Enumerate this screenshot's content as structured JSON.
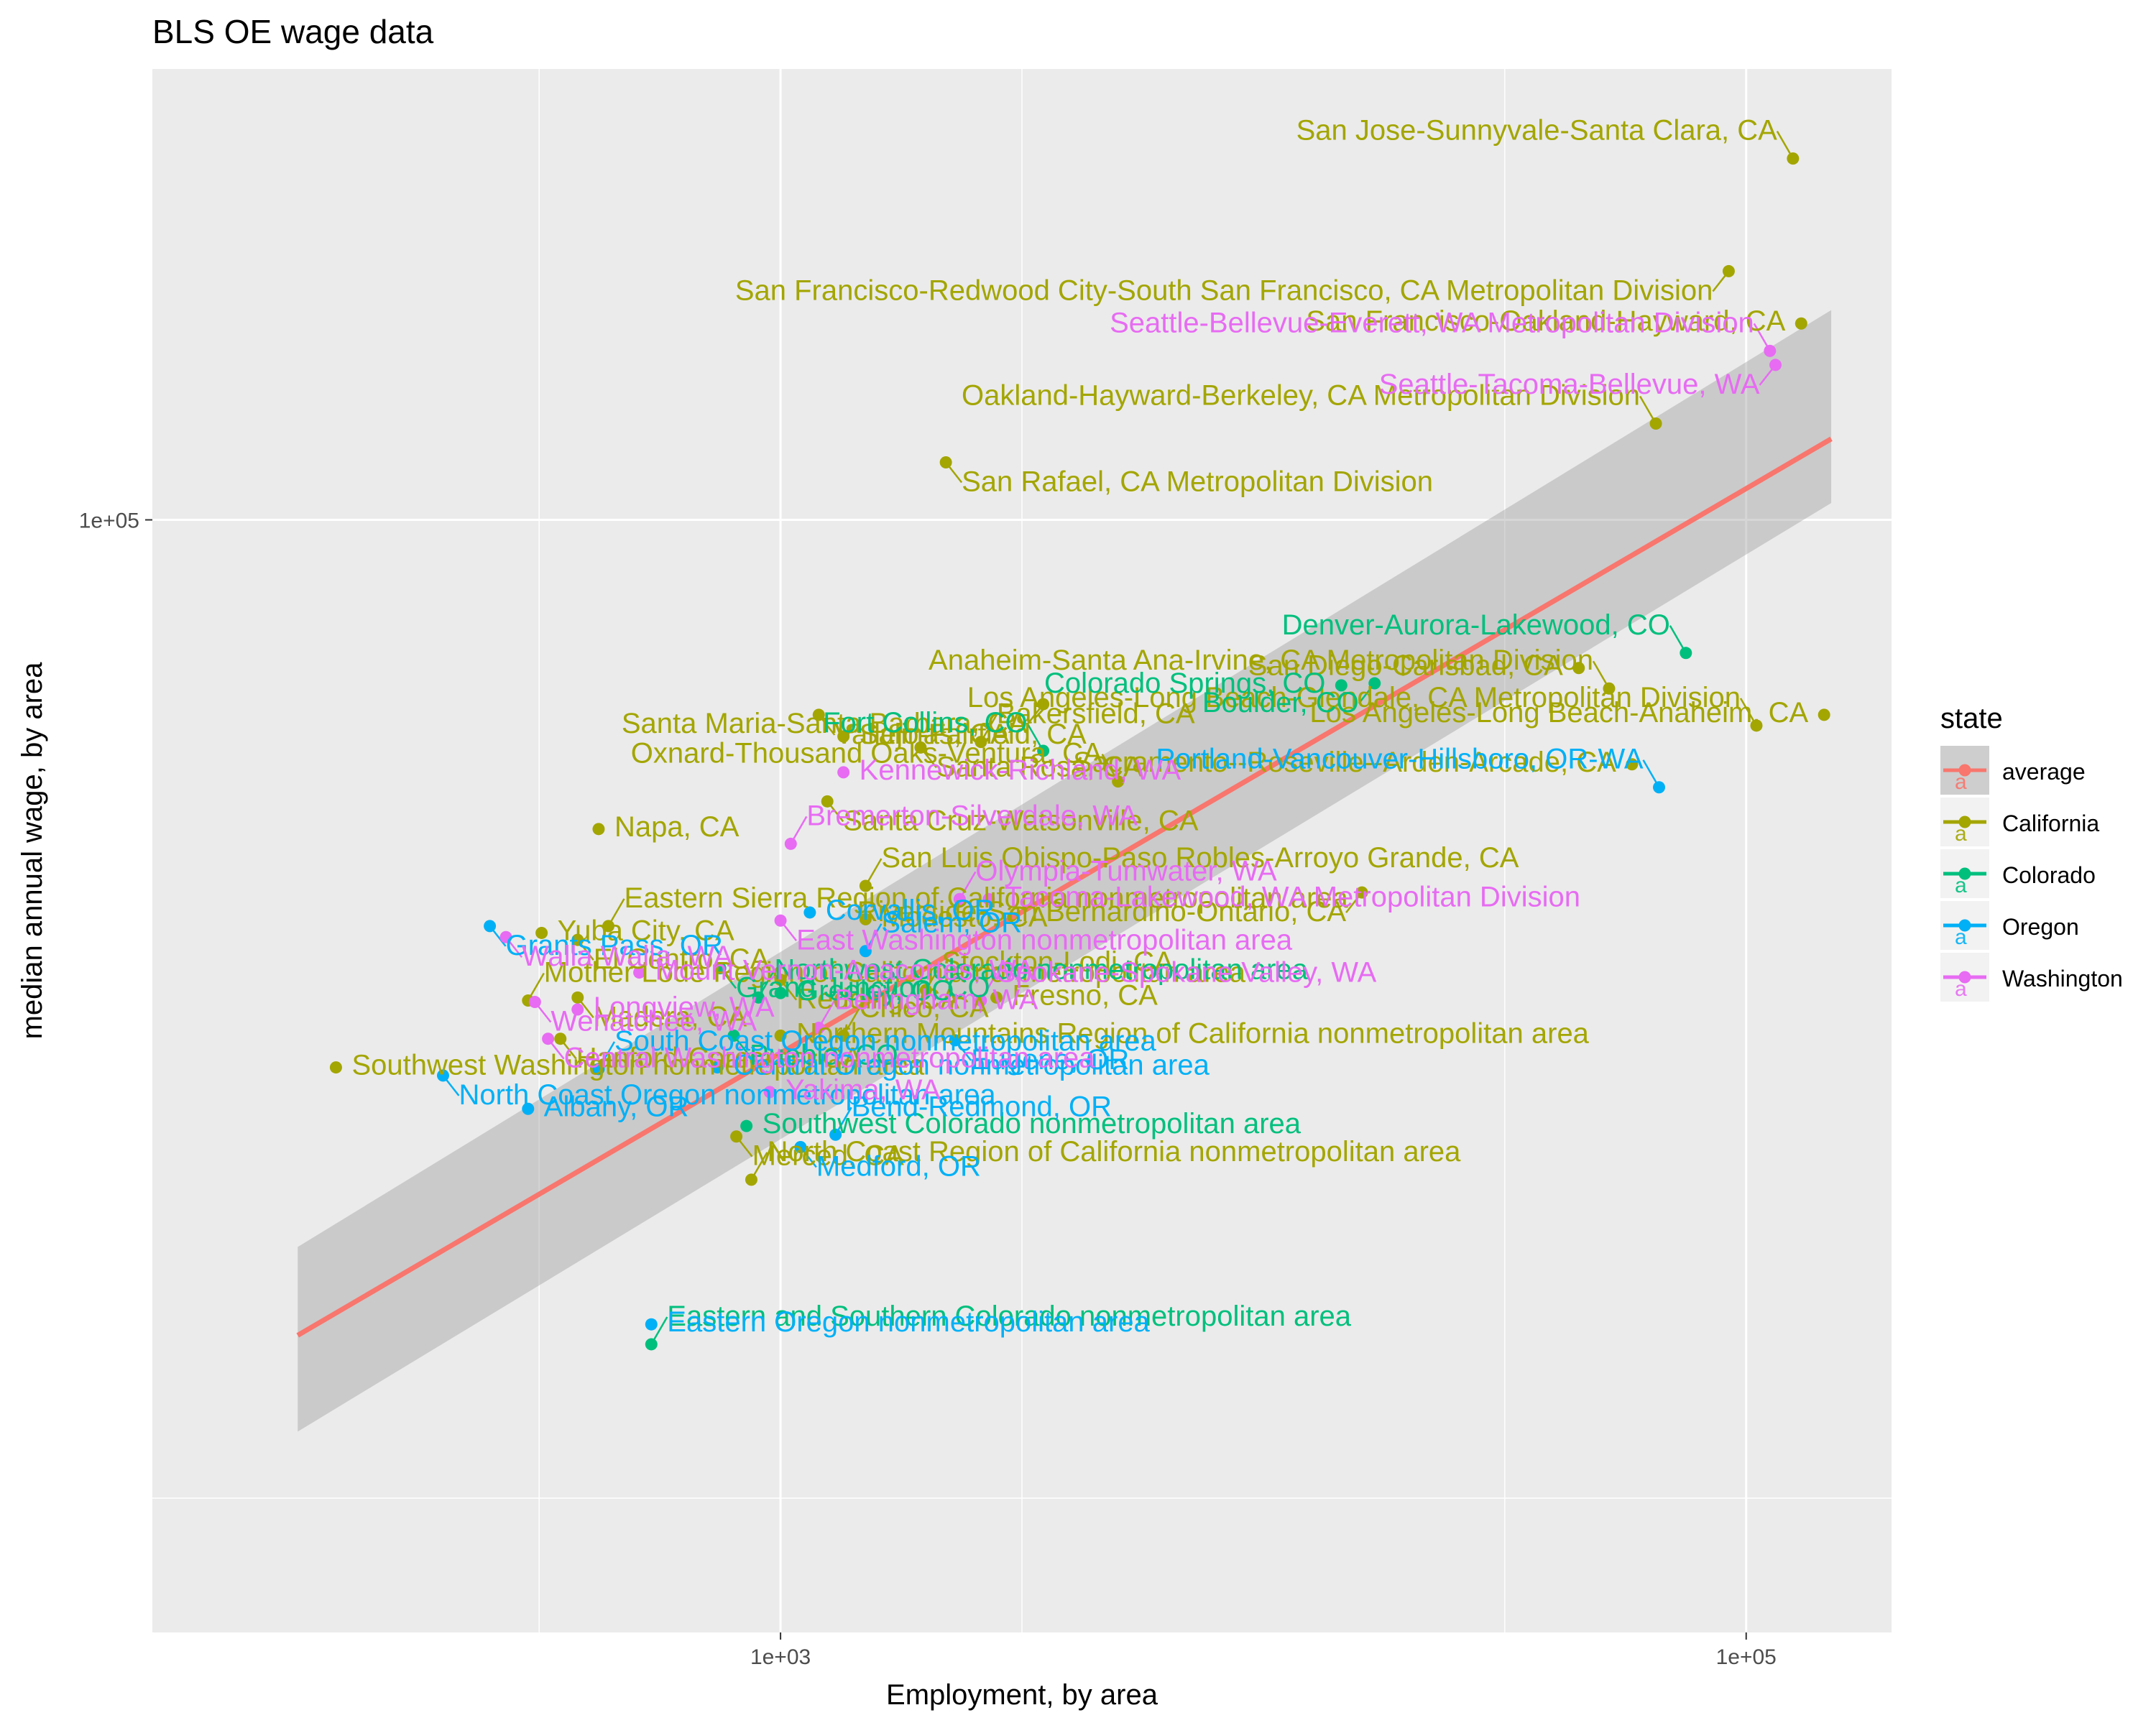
{
  "chart_data": {
    "type": "scatter",
    "title": "BLS OE wage data",
    "xlabel": "Employment, by area",
    "ylabel": "median annual wage, by area",
    "x_scale": "log10",
    "y_scale": "log10",
    "xlim": [
      50,
      200000
    ],
    "ylim": [
      27000,
      170000
    ],
    "x_ticks": [
      {
        "value": 1000,
        "label": "1e+03"
      },
      {
        "value": 100000,
        "label": "1e+05"
      }
    ],
    "y_ticks": [
      {
        "value": 100000,
        "label": "1e+05"
      }
    ],
    "grid": true,
    "legend": {
      "title": "state",
      "position": "right",
      "entries": [
        {
          "name": "average",
          "color": "#F8766D"
        },
        {
          "name": "California",
          "color": "#A3A500"
        },
        {
          "name": "Colorado",
          "color": "#00BF7D"
        },
        {
          "name": "Oregon",
          "color": "#00B0F6"
        },
        {
          "name": "Washington",
          "color": "#E76BF3"
        }
      ]
    },
    "trend_line": {
      "name": "average",
      "x": [
        100,
        150000
      ],
      "y": [
        38300,
        110000
      ]
    },
    "confidence_band": {
      "x": [
        100,
        150000
      ],
      "lower": [
        34200,
        102000
      ],
      "upper": [
        42500,
        128000
      ]
    },
    "series": [
      {
        "name": "California",
        "color": "#A3A500",
        "points": [
          {
            "label": "San Jose-Sunnyvale-Santa Clara, CA",
            "x": 125000,
            "y": 153000
          },
          {
            "label": "San Francisco-Redwood City-South San Francisco, CA Metropolitan Division",
            "x": 92000,
            "y": 134000
          },
          {
            "label": "San Francisco-Oakland-Hayward, CA",
            "x": 130000,
            "y": 126000
          },
          {
            "label": "Oakland-Hayward-Berkeley, CA Metropolitan Division",
            "x": 65000,
            "y": 112000
          },
          {
            "label": "San Rafael, CA Metropolitan Division",
            "x": 2200,
            "y": 107000
          },
          {
            "label": "San Diego-Carlsbad, CA",
            "x": 45000,
            "y": 84000
          },
          {
            "label": "Anaheim-Santa Ana-Irvine, CA Metropolitan Division",
            "x": 52000,
            "y": 82000
          },
          {
            "label": "Santa Maria-Santa Barbara, CA",
            "x": 3500,
            "y": 80500
          },
          {
            "label": "Los Angeles-Long Beach-Anaheim, CA",
            "x": 145000,
            "y": 79500
          },
          {
            "label": "Los Angeles-Long Beach-Glendale, CA Metropolitan Division",
            "x": 105000,
            "y": 78500
          },
          {
            "label": "Vallejo-Fairfield, CA",
            "x": 1200,
            "y": 79500
          },
          {
            "label": "Salinas, CA",
            "x": 1350,
            "y": 77500
          },
          {
            "label": "Bakersfield, CA",
            "x": 2600,
            "y": 77000
          },
          {
            "label": "Santa Rosa, CA",
            "x": 1950,
            "y": 76500
          },
          {
            "label": "Sacramento--Roseville--Arden-Arcade, CA",
            "x": 58000,
            "y": 75000
          },
          {
            "label": "Oxnard-Thousand Oaks-Ventura, CA",
            "x": 5000,
            "y": 73500
          },
          {
            "label": "Santa Cruz-Watsonville, CA",
            "x": 1250,
            "y": 71800
          },
          {
            "label": "Napa, CA",
            "x": 420,
            "y": 69500
          },
          {
            "label": "San Luis Obispo-Paso Robles-Arroyo Grande, CA",
            "x": 1500,
            "y": 65000
          },
          {
            "label": "Riverside-San Bernardino-Ontario, CA",
            "x": 16000,
            "y": 64500
          },
          {
            "label": "Yuba City, CA",
            "x": 320,
            "y": 61500
          },
          {
            "label": "Eastern Sierra Region of California nonmetropolitan area",
            "x": 440,
            "y": 62000
          },
          {
            "label": "El Centro, CA",
            "x": 380,
            "y": 61000
          },
          {
            "label": "Modesto, CA",
            "x": 1500,
            "y": 62500
          },
          {
            "label": "Stockton-Lodi, CA",
            "x": 2000,
            "y": 57500
          },
          {
            "label": "Redding, CA",
            "x": 1000,
            "y": 58200
          },
          {
            "label": "Fresno, CA",
            "x": 2800,
            "y": 57000
          },
          {
            "label": "Mother Lode Region of California nonmetropolitan area",
            "x": 300,
            "y": 56800
          },
          {
            "label": "Madera, CA",
            "x": 380,
            "y": 57000
          },
          {
            "label": "Northern Mountains Region of California nonmetropolitan area",
            "x": 1000,
            "y": 54500
          },
          {
            "label": "Chico, CA",
            "x": 1350,
            "y": 54500
          },
          {
            "label": "Hanford-Corcoran, CA",
            "x": 350,
            "y": 54300
          },
          {
            "label": "Southwest Washington nonmetropolitan area",
            "x": 120,
            "y": 52500
          },
          {
            "label": "North Coast Region of California nonmetropolitan area",
            "x": 870,
            "y": 46000
          },
          {
            "label": "Merced, CA",
            "x": 810,
            "y": 48400
          }
        ]
      },
      {
        "name": "Colorado",
        "color": "#00BF7D",
        "points": [
          {
            "label": "Denver-Aurora-Lakewood, CO",
            "x": 75000,
            "y": 85500
          },
          {
            "label": "Boulder, CO",
            "x": 17000,
            "y": 82500
          },
          {
            "label": "Colorado Springs, CO",
            "x": 14500,
            "y": 82300
          },
          {
            "label": "Fort Collins, CO",
            "x": 3500,
            "y": 76200
          },
          {
            "label": "Grand Junction, CO",
            "x": 750,
            "y": 59000
          },
          {
            "label": "Greeley, CO",
            "x": 1000,
            "y": 57300
          },
          {
            "label": "Northwest Colorado nonmetropolitan area",
            "x": 900,
            "y": 57000
          },
          {
            "label": "Pueblo, CO",
            "x": 800,
            "y": 54500
          },
          {
            "label": "Southwest Colorado nonmetropolitan area",
            "x": 850,
            "y": 49000
          },
          {
            "label": "Eastern and Southern Colorado nonmetropolitan area",
            "x": 540,
            "y": 37900
          }
        ]
      },
      {
        "name": "Oregon",
        "color": "#00B0F6",
        "points": [
          {
            "label": "Portland-Vancouver-Hillsboro, OR-WA",
            "x": 66000,
            "y": 73000
          },
          {
            "label": "Grants Pass, OR",
            "x": 250,
            "y": 62000
          },
          {
            "label": "Corvallis, OR",
            "x": 1150,
            "y": 63000
          },
          {
            "label": "Salem, OR",
            "x": 1500,
            "y": 60200
          },
          {
            "label": "Eugene, OR",
            "x": 2300,
            "y": 54200
          },
          {
            "label": "Central Oregon nonmetropolitan area",
            "x": 740,
            "y": 52500
          },
          {
            "label": "South Coast Oregon nonmetropolitan area",
            "x": 420,
            "y": 52400
          },
          {
            "label": "North Coast Oregon nonmetropolitan area",
            "x": 200,
            "y": 52000
          },
          {
            "label": "Albany, OR",
            "x": 300,
            "y": 50000
          },
          {
            "label": "Bend-Redmond, OR",
            "x": 1300,
            "y": 48500
          },
          {
            "label": "Medford, OR",
            "x": 1100,
            "y": 47800
          },
          {
            "label": "Eastern Oregon nonmetropolitan area",
            "x": 540,
            "y": 38800
          }
        ]
      },
      {
        "name": "Washington",
        "color": "#E76BF3",
        "points": [
          {
            "label": "Seattle-Bellevue-Everett, WA Metropolitan Division",
            "x": 112000,
            "y": 122000
          },
          {
            "label": "Seattle-Tacoma-Bellevue, WA",
            "x": 115000,
            "y": 120000
          },
          {
            "label": "Kennewick-Richland, WA",
            "x": 1350,
            "y": 74300
          },
          {
            "label": "Bremerton-Silverdale, WA",
            "x": 1050,
            "y": 68300
          },
          {
            "label": "East Washington nonmetropolitan area",
            "x": 1000,
            "y": 62400
          },
          {
            "label": "Tacoma-Lakewood, WA Metropolitan Division",
            "x": 2700,
            "y": 64000
          },
          {
            "label": "Olympia-Tumwater, WA",
            "x": 2350,
            "y": 64000
          },
          {
            "label": "Walla Walla, WA",
            "x": 270,
            "y": 61200
          },
          {
            "label": "Mount Vernon-Anacortes, WA",
            "x": 510,
            "y": 58700
          },
          {
            "label": "Spokane-Spokane Valley, WA",
            "x": 2600,
            "y": 56800
          },
          {
            "label": "Wenatchee, WA",
            "x": 310,
            "y": 56700
          },
          {
            "label": "Longview, WA",
            "x": 380,
            "y": 56200
          },
          {
            "label": "Bellingham, WA",
            "x": 1200,
            "y": 55000
          },
          {
            "label": "Central Washington nonmetropolitan area",
            "x": 330,
            "y": 54300
          },
          {
            "label": "Yakima, WA",
            "x": 950,
            "y": 51000
          }
        ]
      }
    ]
  }
}
